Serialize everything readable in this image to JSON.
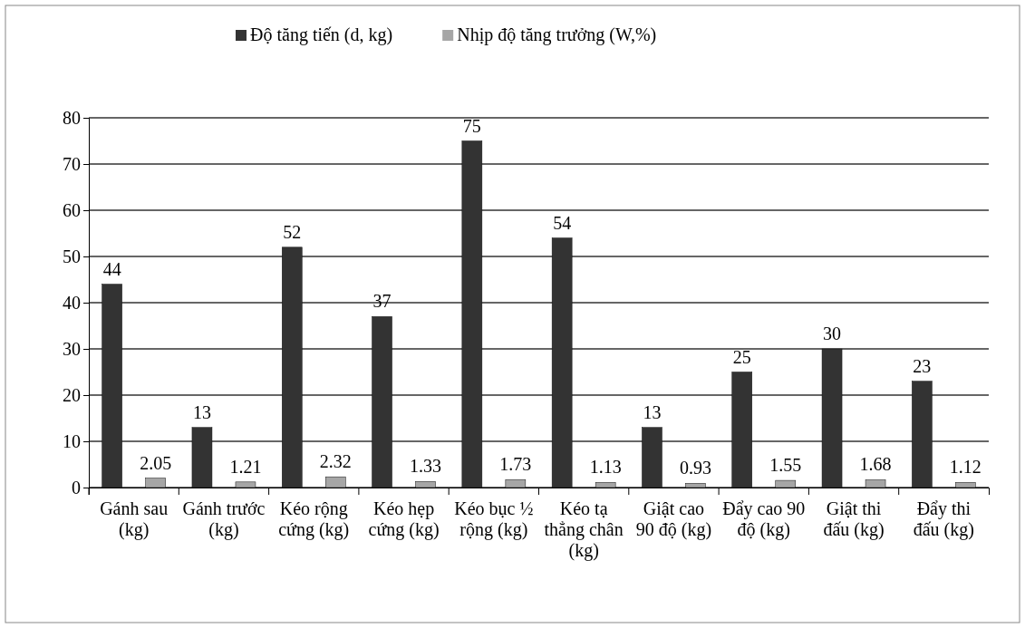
{
  "chart_data": {
    "type": "bar",
    "categories": [
      "Gánh sau (kg)",
      "Gánh trước (kg)",
      "Kéo rộng cứng (kg)",
      "Kéo hẹp cứng (kg)",
      "Kéo bục ½ rộng (kg)",
      "Kéo tạ thẳng chân (kg)",
      "Giật cao 90 độ (kg)",
      "Đẩy cao 90 độ (kg)",
      "Giật thi đấu (kg)",
      "Đẩy thi đấu (kg)"
    ],
    "series": [
      {
        "name": "Độ tăng tiến (d, kg)",
        "color": "#333333",
        "values": [
          44,
          13,
          52,
          37,
          75,
          54,
          13,
          25,
          30,
          23
        ]
      },
      {
        "name": "Nhịp độ tăng trưởng (W,%)",
        "color": "#a6a6a6",
        "values": [
          2.05,
          1.21,
          2.32,
          1.33,
          1.73,
          1.13,
          0.93,
          1.55,
          1.68,
          1.12
        ]
      }
    ],
    "ylim": [
      0,
      80
    ],
    "yticks": [
      0,
      10,
      20,
      30,
      40,
      50,
      60,
      70,
      80
    ],
    "grid": "y",
    "legend": "top",
    "data_labels": true
  }
}
